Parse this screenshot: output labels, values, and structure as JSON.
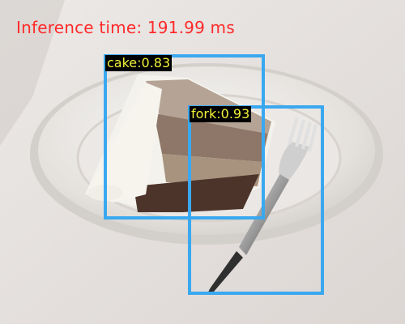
{
  "window": {
    "inference_text": "Inference time: 191.99 ms"
  },
  "detections": [
    {
      "label": "cake:0.83",
      "class": "cake",
      "score": 0.83
    },
    {
      "label": "fork:0.93",
      "class": "fork",
      "score": 0.93
    }
  ],
  "colors": {
    "inference_text": "#ff2a2a",
    "box": "#3aa8f0",
    "label_text": "#f2f23a",
    "label_bg": "#000000"
  }
}
